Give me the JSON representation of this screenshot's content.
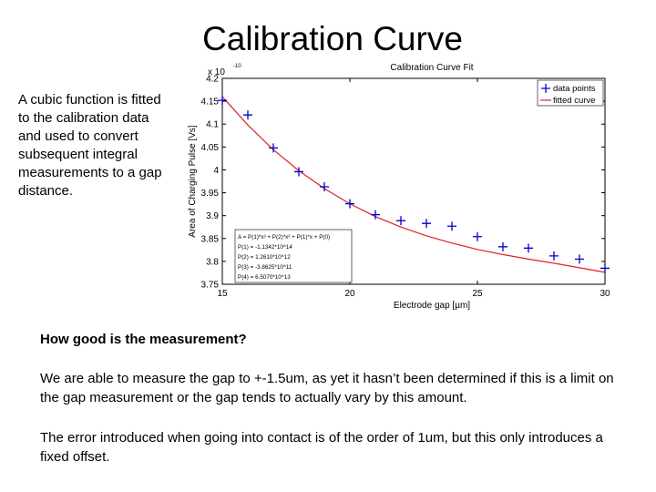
{
  "slide": {
    "title": "Calibration Curve",
    "side_text": "A cubic function is fitted to the calibration data and used to convert subsequent integral measurements to a gap distance.",
    "question": "How good is the measurement?",
    "paragraph1": "We are able to measure the gap to +-1.5um, as yet it hasn’t been determined if this is a limit on the gap measurement or the gap tends to actually vary by this amount.",
    "paragraph2": "The error introduced when going into contact is of the order of 1um, but this only introduces a fixed offset."
  },
  "chart_data": {
    "type": "scatter",
    "title": "Calibration Curve Fit",
    "xlabel": "Electrode gap [µm]",
    "ylabel": "Area of Charging Pulse [Vs]",
    "xlim": [
      15,
      30
    ],
    "ylim": [
      3.75,
      4.2
    ],
    "exponent_label": "x 10",
    "exponent_value": "-10",
    "xticks": [
      15,
      20,
      25,
      30
    ],
    "yticks": [
      3.75,
      3.8,
      3.85,
      3.9,
      3.95,
      4.0,
      4.05,
      4.1,
      4.15,
      4.2
    ],
    "ytick_labels": [
      "3.75",
      "3.8",
      "3.85",
      "3.9",
      "3.95",
      "4",
      "4.05",
      "4.1",
      "4.15",
      "4.2"
    ],
    "series": [
      {
        "name": "data points",
        "marker": "+",
        "color": "#0000cc",
        "x": [
          15,
          16,
          17,
          18,
          19,
          20,
          21,
          22,
          23,
          24,
          25,
          26,
          27,
          28,
          29,
          30
        ],
        "y": [
          4.152,
          4.12,
          4.048,
          3.996,
          3.963,
          3.926,
          3.902,
          3.889,
          3.883,
          3.877,
          3.854,
          3.832,
          3.829,
          3.812,
          3.805,
          3.785
        ]
      },
      {
        "name": "fitted curve",
        "color": "#e02020",
        "x": [
          15,
          16,
          17,
          18,
          19,
          20,
          21,
          22,
          23,
          24,
          25,
          26,
          27,
          28,
          29,
          30
        ],
        "y": [
          4.16,
          4.098,
          4.044,
          3.998,
          3.959,
          3.926,
          3.898,
          3.875,
          3.856,
          3.84,
          3.826,
          3.815,
          3.805,
          3.796,
          3.786,
          3.776
        ]
      }
    ],
    "fit_box": {
      "lines": [
        "A = P(1)*x³ + P(2)*x² + P(1)*x + P(0)",
        "P(1) = -1.1342*10^14",
        "P(2) = 1.2610*10^12",
        "P(3) = -3.8625*10^11",
        "P(4) = 6.5070*10^13"
      ]
    },
    "legend_position": "top-right"
  }
}
